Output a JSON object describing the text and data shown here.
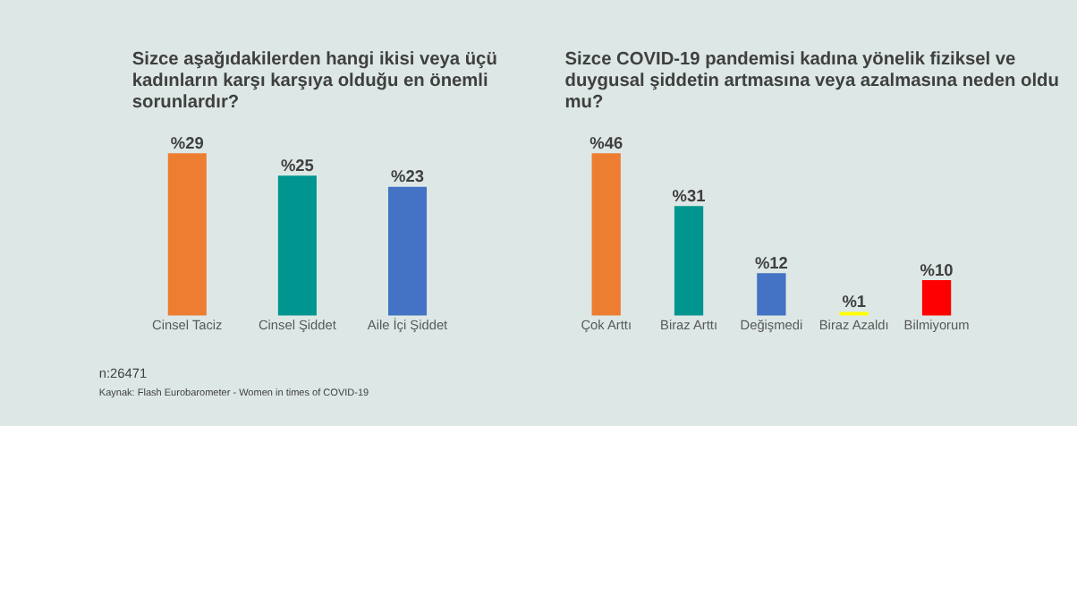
{
  "chart_data": [
    {
      "type": "bar",
      "title": "Sizce aşağıdakilerden hangi ikisi veya üçü kadınların karşı karşıya olduğu en önemli sorunlardır?",
      "categories": [
        "Cinsel Taciz",
        "Cinsel Şiddet",
        "Aile İçi Şiddet"
      ],
      "values": [
        29,
        25,
        23
      ],
      "colors": [
        "#ed7d31",
        "#00968f",
        "#4472c4"
      ],
      "value_labels": [
        "%29",
        "%25",
        "%23"
      ],
      "tick_labels": "x",
      "grid": false,
      "annotations": [
        "n:26471",
        "Kaynak: Flash Eurobarometer - Women in times of COVID-19"
      ]
    },
    {
      "type": "bar",
      "title": "Sizce COVID-19 pandemisi kadına yönelik fiziksel ve duygusal şiddetin artmasına veya azalmasına neden oldu mu?",
      "categories": [
        "Çok Arttı",
        "Biraz Arttı",
        "Değişmedi",
        "Biraz Azaldı",
        "Bilmiyorum"
      ],
      "values": [
        46,
        31,
        12,
        1,
        10
      ],
      "colors": [
        "#ed7d31",
        "#00968f",
        "#4472c4",
        "#ffff00",
        "#ff0000"
      ],
      "value_labels": [
        "%46",
        "%31",
        "%12",
        "%1",
        "%10"
      ],
      "tick_labels": "x",
      "grid": false
    }
  ]
}
